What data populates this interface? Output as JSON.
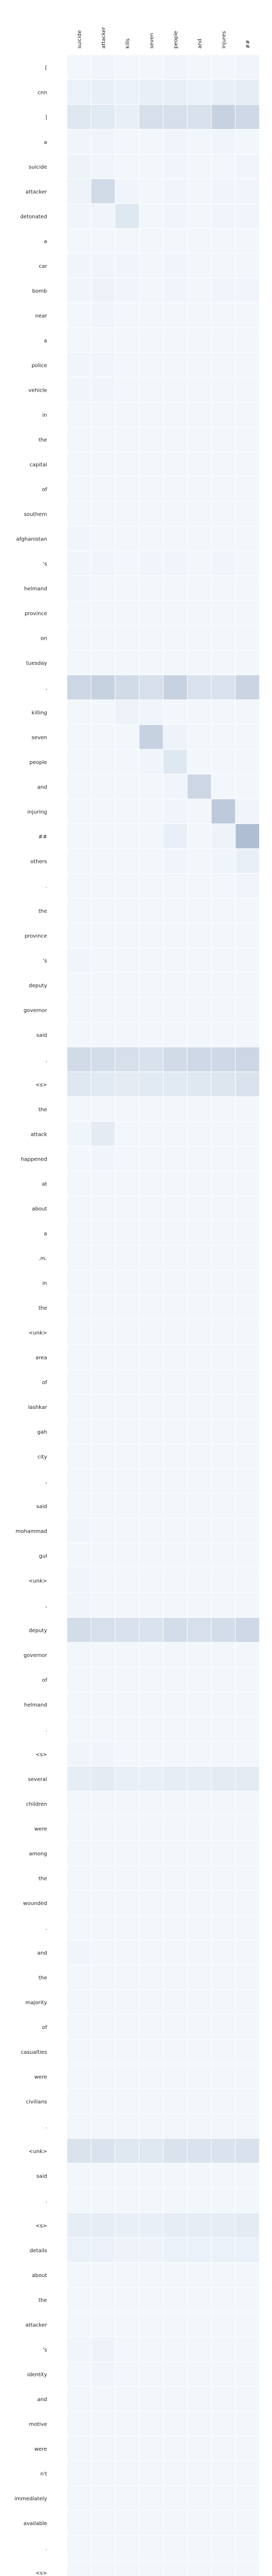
{
  "chart_data": {
    "type": "heatmap",
    "title": "",
    "xlabel": "",
    "ylabel": "",
    "x_labels": [
      "suicide",
      "attacker",
      "kills",
      "seven",
      "people",
      "and",
      "injures",
      "##"
    ],
    "y_labels": [
      "[",
      "cnn",
      "]",
      "a",
      "suicide",
      "attacker",
      "detonated",
      "a",
      "car",
      "bomb",
      "near",
      "a",
      "police",
      "vehicle",
      "in",
      "the",
      "capital",
      "of",
      "southern",
      "afghanistan",
      "'s",
      "helmand",
      "province",
      "on",
      "tuesday",
      ",",
      "killing",
      "seven",
      "people",
      "and",
      "injuring",
      "##",
      "others",
      ".",
      "the",
      "province",
      "'s",
      "deputy",
      "governor",
      "said",
      ".",
      "<s>",
      "the",
      "attack",
      "happened",
      "at",
      "about",
      "a",
      ".m.",
      "in",
      "the",
      "<unk>",
      "area",
      "of",
      "lashkar",
      "gah",
      "city",
      ",",
      "said",
      "mohammad",
      "gul",
      "<unk>",
      ",",
      "deputy",
      "governor",
      "of",
      "helmand",
      ".",
      "<s>",
      "several",
      "children",
      "were",
      "among",
      "the",
      "wounded",
      ".",
      "and",
      "the",
      "majority",
      "of",
      "casualties",
      "were",
      "civilians",
      ".",
      "<unk>",
      "said",
      ".",
      "<s>",
      "details",
      "about",
      "the",
      "attacker",
      "'s",
      "identity",
      "and",
      "motive",
      "were",
      "n't",
      "immediately",
      "available",
      ".",
      "<s>"
    ],
    "values": [
      [
        0.02,
        0.03,
        0.02,
        0.02,
        0.03,
        0.02,
        0.02,
        0.03
      ],
      [
        0.05,
        0.06,
        0.05,
        0.06,
        0.06,
        0.05,
        0.06,
        0.07
      ],
      [
        0.1,
        0.09,
        0.06,
        0.14,
        0.14,
        0.13,
        0.2,
        0.17
      ],
      [
        0.03,
        0.03,
        0.02,
        0.02,
        0.03,
        0.02,
        0.03,
        0.02
      ],
      [
        0.04,
        0.03,
        0.02,
        0.02,
        0.03,
        0.02,
        0.02,
        0.03
      ],
      [
        0.04,
        0.16,
        0.03,
        0.02,
        0.03,
        0.02,
        0.03,
        0.03
      ],
      [
        0.03,
        0.03,
        0.1,
        0.02,
        0.03,
        0.02,
        0.03,
        0.03
      ],
      [
        0.02,
        0.02,
        0.02,
        0.02,
        0.02,
        0.02,
        0.02,
        0.02
      ],
      [
        0.03,
        0.03,
        0.03,
        0.02,
        0.03,
        0.02,
        0.02,
        0.02
      ],
      [
        0.03,
        0.04,
        0.03,
        0.02,
        0.03,
        0.02,
        0.03,
        0.03
      ],
      [
        0.02,
        0.03,
        0.02,
        0.02,
        0.02,
        0.02,
        0.02,
        0.02
      ],
      [
        0.02,
        0.02,
        0.02,
        0.02,
        0.02,
        0.02,
        0.02,
        0.02
      ],
      [
        0.03,
        0.03,
        0.02,
        0.02,
        0.02,
        0.02,
        0.02,
        0.02
      ],
      [
        0.03,
        0.03,
        0.02,
        0.02,
        0.02,
        0.02,
        0.02,
        0.02
      ],
      [
        0.02,
        0.02,
        0.02,
        0.02,
        0.02,
        0.02,
        0.02,
        0.02
      ],
      [
        0.02,
        0.02,
        0.02,
        0.02,
        0.02,
        0.02,
        0.02,
        0.02
      ],
      [
        0.02,
        0.02,
        0.02,
        0.02,
        0.02,
        0.02,
        0.02,
        0.02
      ],
      [
        0.02,
        0.02,
        0.02,
        0.02,
        0.02,
        0.02,
        0.02,
        0.02
      ],
      [
        0.02,
        0.02,
        0.02,
        0.02,
        0.02,
        0.02,
        0.02,
        0.02
      ],
      [
        0.03,
        0.02,
        0.02,
        0.02,
        0.02,
        0.02,
        0.02,
        0.02
      ],
      [
        0.03,
        0.03,
        0.02,
        0.03,
        0.03,
        0.02,
        0.03,
        0.02
      ],
      [
        0.03,
        0.02,
        0.02,
        0.02,
        0.02,
        0.02,
        0.02,
        0.02
      ],
      [
        0.02,
        0.02,
        0.02,
        0.02,
        0.02,
        0.02,
        0.02,
        0.02
      ],
      [
        0.02,
        0.02,
        0.02,
        0.02,
        0.02,
        0.02,
        0.02,
        0.02
      ],
      [
        0.02,
        0.02,
        0.02,
        0.02,
        0.02,
        0.02,
        0.02,
        0.02
      ],
      [
        0.18,
        0.2,
        0.16,
        0.14,
        0.2,
        0.12,
        0.12,
        0.19
      ],
      [
        0.02,
        0.02,
        0.04,
        0.03,
        0.02,
        0.02,
        0.02,
        0.02
      ],
      [
        0.02,
        0.02,
        0.02,
        0.2,
        0.04,
        0.02,
        0.02,
        0.02
      ],
      [
        0.02,
        0.02,
        0.02,
        0.03,
        0.1,
        0.02,
        0.02,
        0.02
      ],
      [
        0.02,
        0.02,
        0.02,
        0.02,
        0.03,
        0.18,
        0.02,
        0.02
      ],
      [
        0.02,
        0.02,
        0.02,
        0.02,
        0.03,
        0.02,
        0.24,
        0.03
      ],
      [
        0.02,
        0.02,
        0.02,
        0.02,
        0.06,
        0.02,
        0.04,
        0.3
      ],
      [
        0.02,
        0.02,
        0.02,
        0.02,
        0.03,
        0.02,
        0.03,
        0.06
      ],
      [
        0.02,
        0.02,
        0.02,
        0.02,
        0.02,
        0.02,
        0.02,
        0.03
      ],
      [
        0.02,
        0.02,
        0.02,
        0.02,
        0.02,
        0.02,
        0.02,
        0.02
      ],
      [
        0.02,
        0.02,
        0.02,
        0.02,
        0.02,
        0.02,
        0.02,
        0.02
      ],
      [
        0.03,
        0.02,
        0.02,
        0.02,
        0.02,
        0.02,
        0.02,
        0.02
      ],
      [
        0.02,
        0.02,
        0.02,
        0.02,
        0.02,
        0.02,
        0.02,
        0.02
      ],
      [
        0.02,
        0.02,
        0.02,
        0.02,
        0.02,
        0.02,
        0.02,
        0.02
      ],
      [
        0.02,
        0.02,
        0.02,
        0.02,
        0.02,
        0.02,
        0.02,
        0.02
      ],
      [
        0.16,
        0.15,
        0.14,
        0.13,
        0.16,
        0.17,
        0.17,
        0.18
      ],
      [
        0.1,
        0.09,
        0.08,
        0.09,
        0.09,
        0.1,
        0.11,
        0.12
      ],
      [
        0.02,
        0.02,
        0.02,
        0.02,
        0.02,
        0.02,
        0.02,
        0.02
      ],
      [
        0.03,
        0.08,
        0.02,
        0.02,
        0.02,
        0.02,
        0.02,
        0.02
      ],
      [
        0.02,
        0.03,
        0.02,
        0.02,
        0.02,
        0.02,
        0.02,
        0.02
      ],
      [
        0.02,
        0.02,
        0.02,
        0.02,
        0.02,
        0.02,
        0.02,
        0.02
      ],
      [
        0.02,
        0.02,
        0.02,
        0.02,
        0.02,
        0.02,
        0.02,
        0.02
      ],
      [
        0.02,
        0.02,
        0.02,
        0.02,
        0.02,
        0.02,
        0.02,
        0.02
      ],
      [
        0.02,
        0.02,
        0.02,
        0.02,
        0.02,
        0.02,
        0.02,
        0.02
      ],
      [
        0.02,
        0.02,
        0.02,
        0.02,
        0.02,
        0.02,
        0.02,
        0.02
      ],
      [
        0.02,
        0.02,
        0.02,
        0.02,
        0.02,
        0.02,
        0.02,
        0.02
      ],
      [
        0.02,
        0.02,
        0.02,
        0.02,
        0.02,
        0.02,
        0.02,
        0.02
      ],
      [
        0.02,
        0.02,
        0.02,
        0.02,
        0.02,
        0.02,
        0.02,
        0.02
      ],
      [
        0.02,
        0.02,
        0.02,
        0.02,
        0.02,
        0.02,
        0.02,
        0.02
      ],
      [
        0.02,
        0.02,
        0.02,
        0.02,
        0.02,
        0.02,
        0.02,
        0.02
      ],
      [
        0.02,
        0.02,
        0.02,
        0.02,
        0.02,
        0.02,
        0.02,
        0.02
      ],
      [
        0.02,
        0.02,
        0.02,
        0.02,
        0.02,
        0.02,
        0.02,
        0.02
      ],
      [
        0.02,
        0.02,
        0.02,
        0.02,
        0.02,
        0.02,
        0.02,
        0.02
      ],
      [
        0.02,
        0.02,
        0.02,
        0.02,
        0.02,
        0.02,
        0.02,
        0.02
      ],
      [
        0.03,
        0.02,
        0.02,
        0.02,
        0.02,
        0.02,
        0.02,
        0.02
      ],
      [
        0.02,
        0.02,
        0.02,
        0.02,
        0.02,
        0.02,
        0.02,
        0.02
      ],
      [
        0.03,
        0.02,
        0.02,
        0.02,
        0.02,
        0.02,
        0.02,
        0.02
      ],
      [
        0.03,
        0.02,
        0.02,
        0.02,
        0.02,
        0.02,
        0.02,
        0.02
      ],
      [
        0.15,
        0.14,
        0.13,
        0.12,
        0.15,
        0.14,
        0.15,
        0.17
      ],
      [
        0.02,
        0.02,
        0.02,
        0.02,
        0.02,
        0.02,
        0.02,
        0.02
      ],
      [
        0.02,
        0.02,
        0.02,
        0.02,
        0.02,
        0.02,
        0.02,
        0.02
      ],
      [
        0.02,
        0.02,
        0.02,
        0.02,
        0.02,
        0.02,
        0.02,
        0.02
      ],
      [
        0.02,
        0.02,
        0.02,
        0.02,
        0.02,
        0.02,
        0.02,
        0.02
      ],
      [
        0.03,
        0.03,
        0.02,
        0.02,
        0.02,
        0.02,
        0.02,
        0.02
      ],
      [
        0.07,
        0.08,
        0.06,
        0.06,
        0.07,
        0.07,
        0.08,
        0.08
      ],
      [
        0.02,
        0.02,
        0.02,
        0.02,
        0.02,
        0.02,
        0.02,
        0.02
      ],
      [
        0.02,
        0.02,
        0.02,
        0.02,
        0.02,
        0.02,
        0.02,
        0.02
      ],
      [
        0.02,
        0.02,
        0.02,
        0.02,
        0.02,
        0.02,
        0.02,
        0.02
      ],
      [
        0.02,
        0.02,
        0.02,
        0.02,
        0.02,
        0.02,
        0.02,
        0.02
      ],
      [
        0.02,
        0.02,
        0.02,
        0.02,
        0.02,
        0.02,
        0.02,
        0.02
      ],
      [
        0.02,
        0.02,
        0.02,
        0.02,
        0.02,
        0.02,
        0.02,
        0.02
      ],
      [
        0.03,
        0.02,
        0.02,
        0.02,
        0.02,
        0.02,
        0.02,
        0.02
      ],
      [
        0.02,
        0.02,
        0.02,
        0.02,
        0.02,
        0.02,
        0.02,
        0.02
      ],
      [
        0.02,
        0.02,
        0.02,
        0.02,
        0.02,
        0.02,
        0.02,
        0.02
      ],
      [
        0.02,
        0.02,
        0.02,
        0.02,
        0.02,
        0.02,
        0.02,
        0.02
      ],
      [
        0.02,
        0.02,
        0.02,
        0.02,
        0.02,
        0.02,
        0.02,
        0.02
      ],
      [
        0.02,
        0.02,
        0.02,
        0.02,
        0.02,
        0.02,
        0.02,
        0.02
      ],
      [
        0.02,
        0.02,
        0.02,
        0.02,
        0.02,
        0.02,
        0.02,
        0.02
      ],
      [
        0.02,
        0.02,
        0.02,
        0.02,
        0.02,
        0.02,
        0.02,
        0.02
      ],
      [
        0.12,
        0.12,
        0.1,
        0.1,
        0.12,
        0.12,
        0.12,
        0.13
      ],
      [
        0.02,
        0.02,
        0.02,
        0.02,
        0.02,
        0.02,
        0.02,
        0.02
      ],
      [
        0.02,
        0.02,
        0.02,
        0.02,
        0.02,
        0.02,
        0.02,
        0.02
      ],
      [
        0.07,
        0.07,
        0.06,
        0.06,
        0.07,
        0.07,
        0.07,
        0.08
      ],
      [
        0.05,
        0.05,
        0.04,
        0.04,
        0.05,
        0.05,
        0.05,
        0.05
      ],
      [
        0.02,
        0.02,
        0.02,
        0.02,
        0.02,
        0.02,
        0.02,
        0.02
      ],
      [
        0.02,
        0.02,
        0.02,
        0.02,
        0.02,
        0.02,
        0.02,
        0.02
      ],
      [
        0.02,
        0.02,
        0.02,
        0.02,
        0.02,
        0.02,
        0.02,
        0.02
      ],
      [
        0.03,
        0.04,
        0.02,
        0.02,
        0.02,
        0.02,
        0.02,
        0.02
      ],
      [
        0.02,
        0.03,
        0.02,
        0.02,
        0.02,
        0.02,
        0.02,
        0.02
      ],
      [
        0.02,
        0.02,
        0.02,
        0.02,
        0.02,
        0.02,
        0.02,
        0.02
      ],
      [
        0.02,
        0.02,
        0.02,
        0.02,
        0.02,
        0.02,
        0.02,
        0.02
      ],
      [
        0.02,
        0.02,
        0.02,
        0.02,
        0.02,
        0.02,
        0.02,
        0.02
      ],
      [
        0.02,
        0.02,
        0.02,
        0.02,
        0.02,
        0.02,
        0.02,
        0.02
      ],
      [
        0.02,
        0.02,
        0.02,
        0.02,
        0.02,
        0.02,
        0.02,
        0.02
      ],
      [
        0.02,
        0.02,
        0.02,
        0.02,
        0.02,
        0.02,
        0.02,
        0.02
      ],
      [
        0.02,
        0.02,
        0.02,
        0.02,
        0.02,
        0.02,
        0.02,
        0.02
      ],
      [
        0.02,
        0.02,
        0.02,
        0.02,
        0.02,
        0.02,
        0.02,
        0.02
      ],
      [
        0.02,
        0.02,
        0.02,
        0.02,
        0.02,
        0.02,
        0.02,
        0.02
      ]
    ],
    "colormap": {
      "low": "#f7fbff",
      "high": "#08306b"
    },
    "vmin": 0,
    "vmax": 1,
    "grid": false,
    "legend": "none"
  }
}
